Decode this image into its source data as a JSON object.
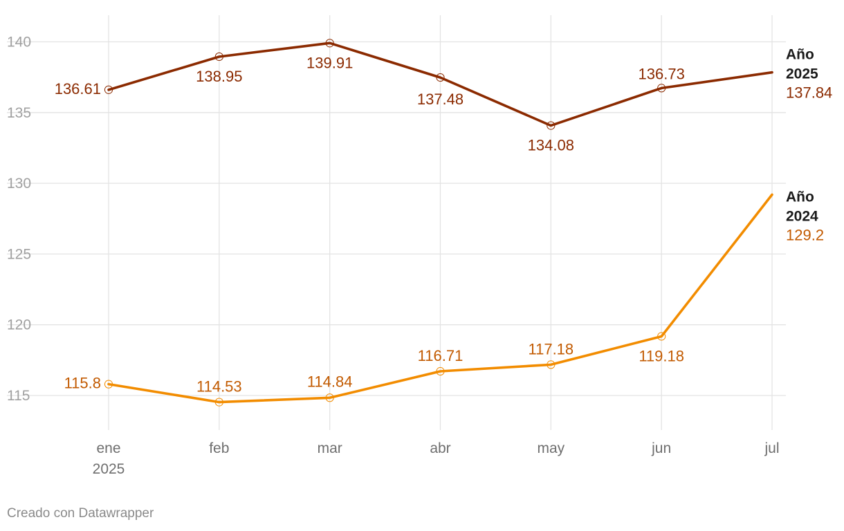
{
  "chart_data": {
    "type": "line",
    "categories": [
      "ene",
      "feb",
      "mar",
      "abr",
      "may",
      "jun",
      "jul"
    ],
    "category_sublabels": [
      "2025",
      "",
      "",
      "",
      "",
      "",
      ""
    ],
    "ylim": [
      112.5,
      142
    ],
    "yticks": [
      115,
      120,
      125,
      130,
      135,
      140
    ],
    "grid": true,
    "series": [
      {
        "name_line1": "Año",
        "name_line2": "2025",
        "color": "#8b2a00",
        "values": [
          136.61,
          138.95,
          139.91,
          137.48,
          134.08,
          136.73,
          137.84
        ],
        "value_labels": [
          "136.61",
          "138.95",
          "139.91",
          "137.48",
          "134.08",
          "136.73"
        ],
        "end_value_label": "137.84"
      },
      {
        "name_line1": "Año",
        "name_line2": "2024",
        "color": "#f28c00",
        "label_color": "#c25a00",
        "values": [
          115.8,
          114.53,
          114.84,
          116.71,
          117.18,
          119.18,
          129.2
        ],
        "value_labels": [
          "115.8",
          "114.53",
          "114.84",
          "116.71",
          "117.18",
          "119.18"
        ],
        "end_value_label": "129.2"
      }
    ]
  },
  "footer": {
    "credit": "Creado con Datawrapper"
  }
}
